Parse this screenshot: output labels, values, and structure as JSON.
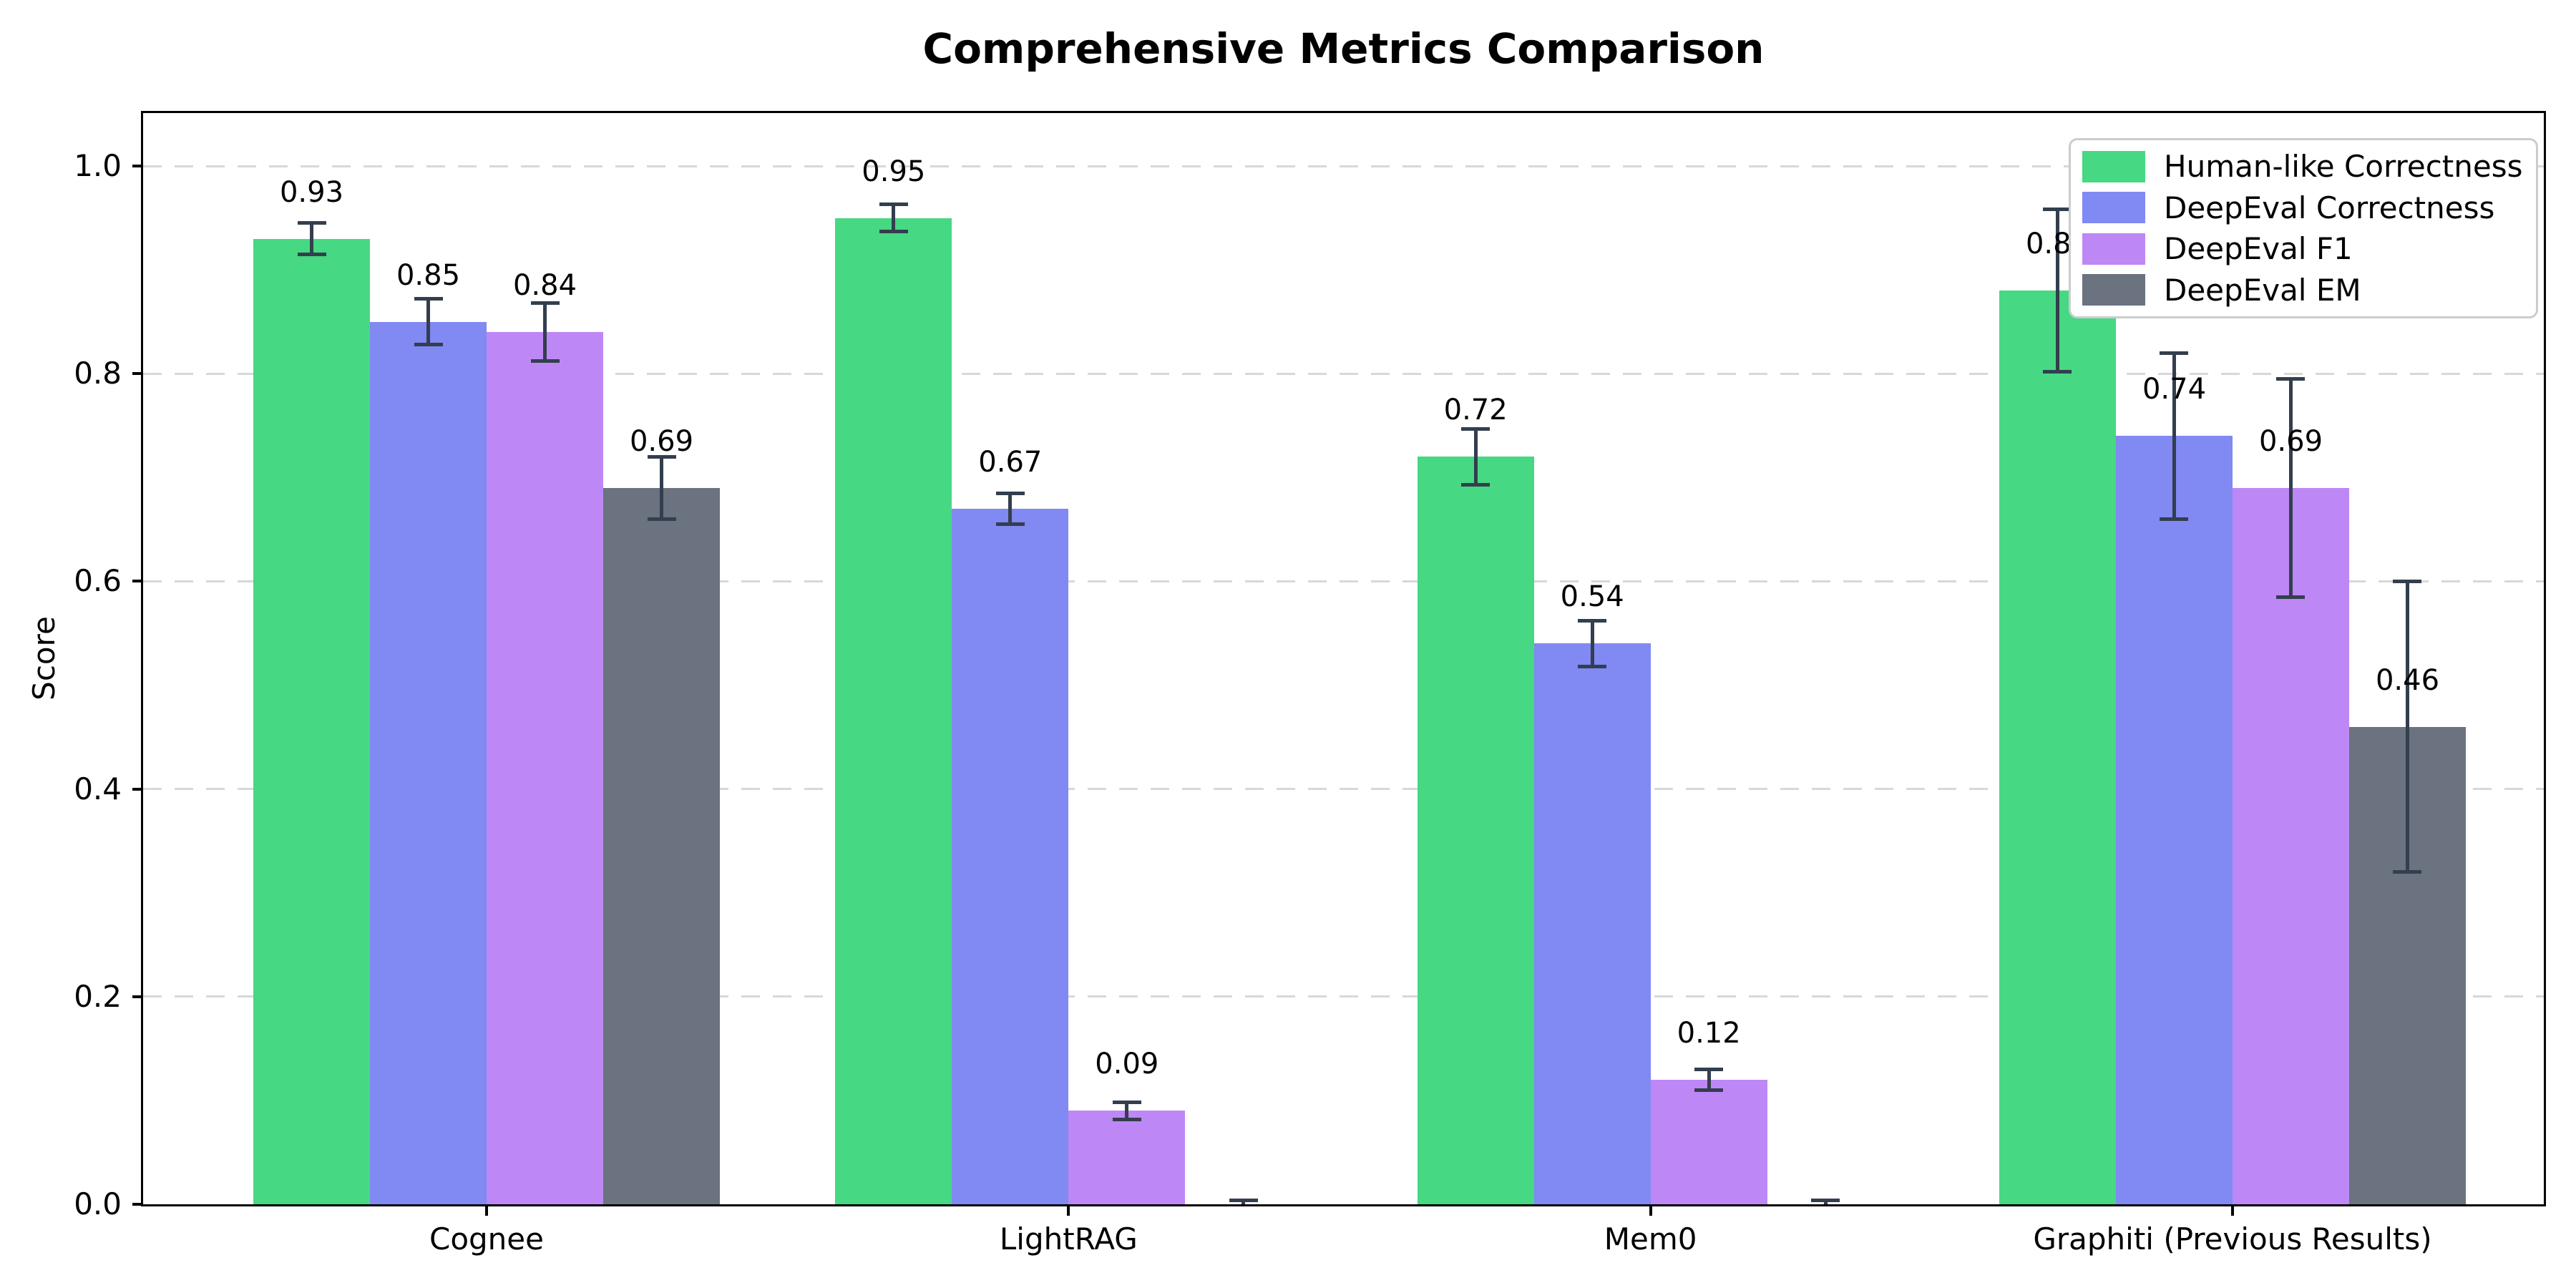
{
  "chart_data": {
    "type": "bar",
    "title": "Comprehensive Metrics Comparison",
    "xlabel": "",
    "ylabel": "Score",
    "ylim": [
      0,
      1.05
    ],
    "yticks": [
      "0.0",
      "0.2",
      "0.4",
      "0.6",
      "0.8",
      "1.0"
    ],
    "grid": "horizontal dashed lightgray",
    "legend_position": "upper right",
    "categories": [
      "Cognee",
      "LightRAG",
      "Mem0",
      "Graphiti (Previous Results)"
    ],
    "series": [
      {
        "name": "Human-like Correctness",
        "color": "#46d882",
        "values": [
          0.93,
          0.95,
          0.72,
          0.88
        ],
        "errors": [
          0.015,
          0.013,
          0.027,
          0.078
        ],
        "labels": [
          "0.93",
          "0.95",
          "0.72",
          "0.88"
        ]
      },
      {
        "name": "DeepEval Correctness",
        "color": "#8189f2",
        "values": [
          0.85,
          0.67,
          0.54,
          0.74
        ],
        "errors": [
          0.022,
          0.015,
          0.022,
          0.08
        ],
        "labels": [
          "0.85",
          "0.67",
          "0.54",
          "0.74"
        ]
      },
      {
        "name": "DeepEval F1",
        "color": "#bd88f5",
        "values": [
          0.84,
          0.09,
          0.12,
          0.69
        ],
        "errors": [
          0.028,
          0.008,
          0.01,
          0.105
        ],
        "labels": [
          "0.84",
          "0.09",
          "0.12",
          "0.69"
        ]
      },
      {
        "name": "DeepEval EM",
        "color": "#6b7280",
        "values": [
          0.69,
          0.0,
          0.0,
          0.46
        ],
        "errors": [
          0.03,
          0.004,
          0.004,
          0.14
        ],
        "labels": [
          "0.69",
          "",
          "",
          "0.46"
        ]
      }
    ],
    "error_bar_color": "#333e4e"
  }
}
